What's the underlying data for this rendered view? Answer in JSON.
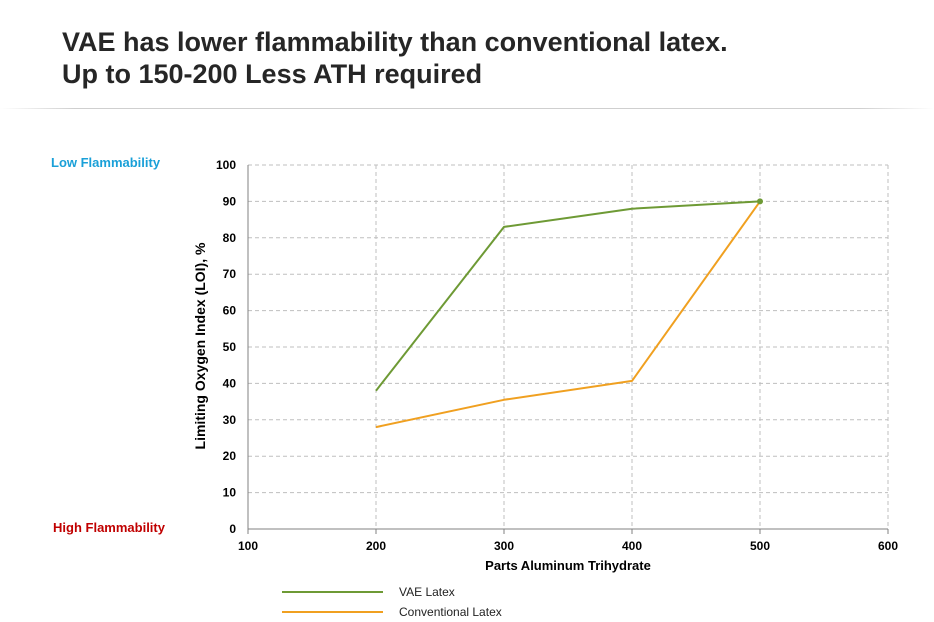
{
  "title_lines": [
    "VAE has lower flammability than conventional latex.",
    "Up to 150-200 Less ATH required"
  ],
  "annotations": {
    "low": "Low Flammability",
    "high_word1": "High",
    "high_word2": "Flammability"
  },
  "colors": {
    "vae": "#6e9a35",
    "conventional": "#f0a020",
    "low_label": "#1aa0d8",
    "high_label": "#c00000",
    "grid": "#bfbfbf"
  },
  "chart_data": {
    "type": "line",
    "title": "",
    "xlabel": "Parts Aluminum Trihydrate",
    "ylabel": "Limiting Oxygen Index (LOI), %",
    "xlim": [
      100,
      600
    ],
    "ylim": [
      0,
      100
    ],
    "xticks": [
      100,
      200,
      300,
      400,
      500,
      600
    ],
    "yticks": [
      0,
      10,
      20,
      30,
      40,
      50,
      60,
      70,
      80,
      90,
      100
    ],
    "grid": true,
    "legend_position": "bottom",
    "series": [
      {
        "name": "VAE Latex",
        "color": "#6e9a35",
        "x": [
          200,
          300,
          400,
          500
        ],
        "y": [
          38,
          83,
          88,
          90
        ]
      },
      {
        "name": "Conventional Latex",
        "color": "#f0a020",
        "x": [
          200,
          300,
          400,
          500
        ],
        "y": [
          28,
          35.5,
          40.7,
          90
        ]
      }
    ]
  }
}
